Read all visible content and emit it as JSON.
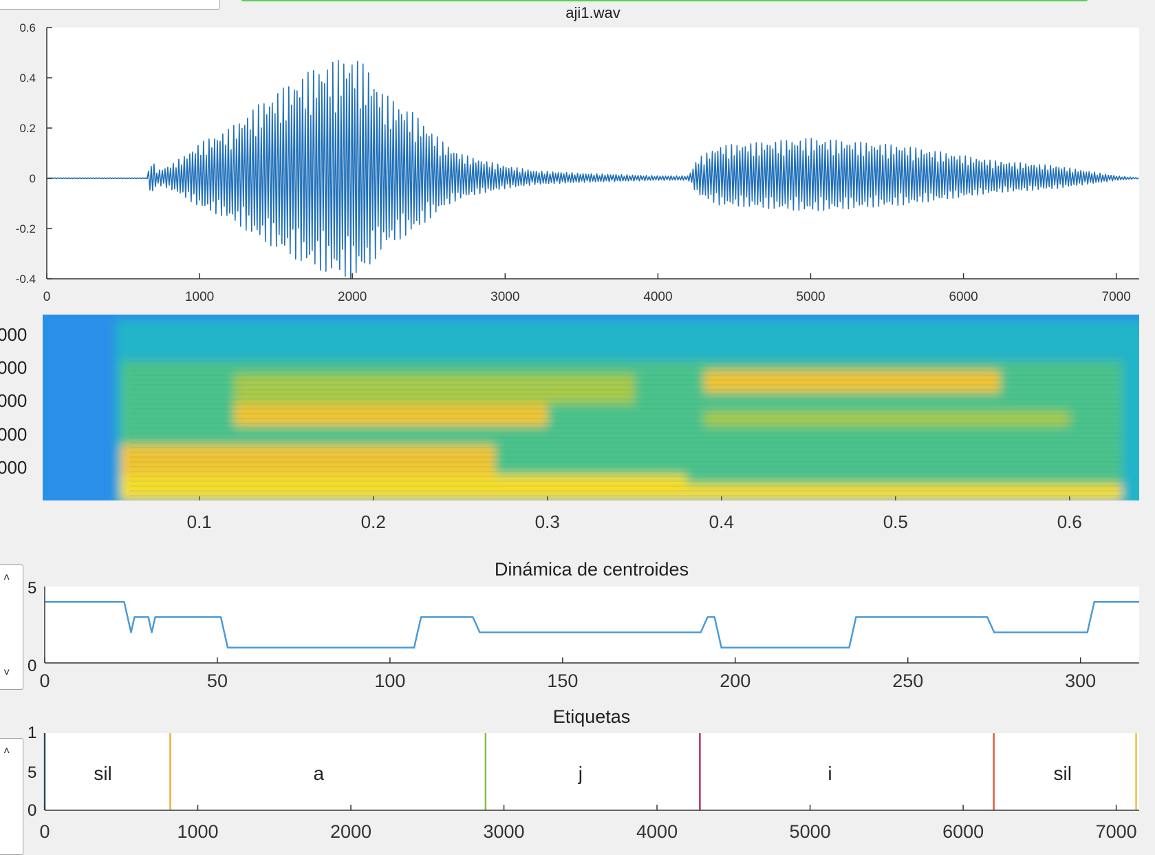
{
  "chart_data": [
    {
      "type": "line",
      "title": "aji1.wav",
      "xlim": [
        0,
        7150
      ],
      "ylim": [
        -0.4,
        0.6
      ],
      "xticks": [
        0,
        1000,
        2000,
        3000,
        4000,
        5000,
        6000,
        7000
      ],
      "yticks": [
        -0.4,
        -0.2,
        0,
        0.2,
        0.4,
        0.6
      ],
      "xtick_labels": [
        "0",
        "1000",
        "2000",
        "3000",
        "4000",
        "5000",
        "6000",
        "7000"
      ],
      "ytick_labels": [
        "-0.4",
        "-0.2",
        "0",
        "0.2",
        "0.4",
        "0.6"
      ],
      "color": "#1f6fb8",
      "envelope": [
        [
          0,
          0.002
        ],
        [
          660,
          0.002
        ],
        [
          680,
          0.09
        ],
        [
          720,
          0.03
        ],
        [
          800,
          0.05
        ],
        [
          900,
          0.09
        ],
        [
          1000,
          0.14
        ],
        [
          1100,
          0.17
        ],
        [
          1200,
          0.2
        ],
        [
          1300,
          0.25
        ],
        [
          1400,
          0.3
        ],
        [
          1500,
          0.34
        ],
        [
          1600,
          0.38
        ],
        [
          1700,
          0.42
        ],
        [
          1800,
          0.45
        ],
        [
          1900,
          0.47
        ],
        [
          2000,
          0.49
        ],
        [
          2100,
          0.44
        ],
        [
          2200,
          0.34
        ],
        [
          2300,
          0.3
        ],
        [
          2400,
          0.26
        ],
        [
          2500,
          0.2
        ],
        [
          2600,
          0.14
        ],
        [
          2700,
          0.1
        ],
        [
          2800,
          0.08
        ],
        [
          3000,
          0.05
        ],
        [
          3200,
          0.03
        ],
        [
          3500,
          0.02
        ],
        [
          4000,
          0.01
        ],
        [
          4200,
          0.01
        ],
        [
          4260,
          0.08
        ],
        [
          4400,
          0.13
        ],
        [
          4600,
          0.14
        ],
        [
          4800,
          0.15
        ],
        [
          5000,
          0.16
        ],
        [
          5200,
          0.15
        ],
        [
          5400,
          0.14
        ],
        [
          5600,
          0.13
        ],
        [
          5800,
          0.11
        ],
        [
          6000,
          0.09
        ],
        [
          6200,
          0.07
        ],
        [
          6400,
          0.06
        ],
        [
          6600,
          0.05
        ],
        [
          6800,
          0.03
        ],
        [
          7000,
          0.01
        ],
        [
          7150,
          0.002
        ]
      ]
    },
    {
      "type": "heatmap",
      "xlim": [
        0.01,
        0.64
      ],
      "xticks": [
        0.1,
        0.2,
        0.3,
        0.4,
        0.5,
        0.6
      ],
      "xtick_labels": [
        "0.1",
        "0.2",
        "0.3",
        "0.4",
        "0.5",
        "0.6"
      ],
      "ytick_labels": [
        "000",
        "000",
        "000",
        "000",
        "000"
      ],
      "colormap": [
        "#3a4fe0",
        "#2a8fe8",
        "#20b4c8",
        "#4cc28a",
        "#a9c94a",
        "#f2c430",
        "#f7dc2a"
      ],
      "energy_regions": [
        {
          "t": [
            0.055,
            0.38
          ],
          "f": [
            0.0,
            0.14
          ],
          "level": 0.95
        },
        {
          "t": [
            0.055,
            0.27
          ],
          "f": [
            0.14,
            0.3
          ],
          "level": 0.82
        },
        {
          "t": [
            0.12,
            0.3
          ],
          "f": [
            0.4,
            0.52
          ],
          "level": 0.78
        },
        {
          "t": [
            0.12,
            0.35
          ],
          "f": [
            0.52,
            0.68
          ],
          "level": 0.7
        },
        {
          "t": [
            0.38,
            0.63
          ],
          "f": [
            0.0,
            0.09
          ],
          "level": 0.92
        },
        {
          "t": [
            0.39,
            0.56
          ],
          "f": [
            0.58,
            0.7
          ],
          "level": 0.82
        },
        {
          "t": [
            0.39,
            0.6
          ],
          "f": [
            0.4,
            0.48
          ],
          "level": 0.72
        }
      ]
    },
    {
      "type": "line",
      "title": "Dinámica de centroides",
      "xlim": [
        0,
        317
      ],
      "ylim": [
        0,
        5
      ],
      "xticks": [
        0,
        50,
        100,
        150,
        200,
        250,
        300
      ],
      "xtick_labels": [
        "0",
        "50",
        "100",
        "150",
        "200",
        "250",
        "300"
      ],
      "ytick_labels": [
        "5",
        "0"
      ],
      "color": "#4a9ad8",
      "x": [
        0,
        23,
        24,
        25,
        26,
        30,
        31,
        32,
        33,
        51,
        52,
        53,
        107,
        108,
        109,
        124,
        125,
        126,
        190,
        191,
        192,
        194,
        195,
        196,
        233,
        234,
        235,
        273,
        274,
        275,
        302,
        303,
        304,
        317
      ],
      "y": [
        4,
        4,
        3,
        2,
        3,
        3,
        2,
        3,
        3,
        3,
        2,
        1,
        1,
        2,
        3,
        3,
        2.5,
        2,
        2,
        2.5,
        3,
        3,
        2,
        1,
        1,
        2,
        3,
        3,
        2.5,
        2,
        2,
        3,
        4,
        4
      ]
    },
    {
      "type": "line",
      "title": "Etiquetas",
      "xlim": [
        0,
        7150
      ],
      "ylim": [
        0,
        1
      ],
      "xticks": [
        0,
        1000,
        2000,
        3000,
        4000,
        5000,
        6000,
        7000
      ],
      "xtick_labels": [
        "0",
        "1000",
        "2000",
        "3000",
        "4000",
        "5000",
        "6000",
        "7000"
      ],
      "ytick_labels": [
        "1",
        "5",
        "0"
      ],
      "boundaries": [
        {
          "x": 0,
          "color": "#1f77b4"
        },
        {
          "x": 820,
          "color": "#f0b040"
        },
        {
          "x": 2880,
          "color": "#8fbf40"
        },
        {
          "x": 4280,
          "color": "#b03060"
        },
        {
          "x": 6200,
          "color": "#e06040"
        },
        {
          "x": 7130,
          "color": "#f0c040"
        }
      ],
      "labels": [
        {
          "x": 380,
          "text": "sil"
        },
        {
          "x": 1790,
          "text": "a"
        },
        {
          "x": 3500,
          "text": "j"
        },
        {
          "x": 5130,
          "text": "i"
        },
        {
          "x": 6650,
          "text": "sil"
        }
      ]
    }
  ],
  "controls": {
    "up_arrow": "˄",
    "down_arrow": "˅"
  }
}
